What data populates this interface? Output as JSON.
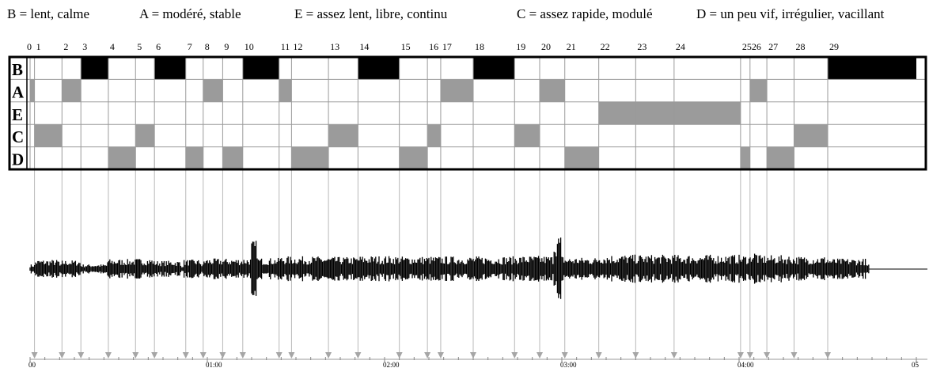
{
  "legend": [
    "B = lent, calme",
    "A = modéré, stable",
    "E = assez lent, libre, continu",
    "C = assez rapide, modulé",
    "D = un peu vif, irrégulier, vacillant"
  ],
  "rows": [
    "B",
    "A",
    "E",
    "C",
    "D"
  ],
  "segment_labels": [
    "0",
    "1",
    "2",
    "3",
    "4",
    "5",
    "6",
    "7",
    "8",
    "9",
    "10",
    "11",
    "12",
    "13",
    "14",
    "15",
    "16",
    "17",
    "18",
    "19",
    "20",
    "21",
    "22",
    "23",
    "24",
    "25",
    "26",
    "27",
    "28",
    "29"
  ],
  "segments": [
    {
      "id": "0",
      "start": 0.0,
      "end": 1.5,
      "cat": "A"
    },
    {
      "id": "1",
      "start": 1.5,
      "end": 10.8,
      "cat": "C"
    },
    {
      "id": "2",
      "start": 10.8,
      "end": 17.2,
      "cat": "A"
    },
    {
      "id": "3",
      "start": 17.2,
      "end": 26.5,
      "cat": "B"
    },
    {
      "id": "4",
      "start": 26.5,
      "end": 35.7,
      "cat": "D"
    },
    {
      "id": "5",
      "start": 35.7,
      "end": 42.1,
      "cat": "C"
    },
    {
      "id": "6",
      "start": 42.1,
      "end": 52.7,
      "cat": "B"
    },
    {
      "id": "7",
      "start": 52.7,
      "end": 58.6,
      "cat": "D"
    },
    {
      "id": "8",
      "start": 58.6,
      "end": 65.2,
      "cat": "A"
    },
    {
      "id": "9",
      "start": 65.2,
      "end": 72.0,
      "cat": "D"
    },
    {
      "id": "10",
      "start": 72.0,
      "end": 84.3,
      "cat": "B"
    },
    {
      "id": "11",
      "start": 84.3,
      "end": 88.5,
      "cat": "A"
    },
    {
      "id": "12",
      "start": 88.5,
      "end": 101.0,
      "cat": "D"
    },
    {
      "id": "13",
      "start": 101.0,
      "end": 111.0,
      "cat": "C"
    },
    {
      "id": "14",
      "start": 111.0,
      "end": 125.0,
      "cat": "B"
    },
    {
      "id": "15",
      "start": 125.0,
      "end": 134.5,
      "cat": "D"
    },
    {
      "id": "16",
      "start": 134.5,
      "end": 139.0,
      "cat": "C"
    },
    {
      "id": "17",
      "start": 139.0,
      "end": 150.0,
      "cat": "A"
    },
    {
      "id": "18",
      "start": 150.0,
      "end": 164.0,
      "cat": "B"
    },
    {
      "id": "19",
      "start": 164.0,
      "end": 172.5,
      "cat": "C"
    },
    {
      "id": "20",
      "start": 172.5,
      "end": 181.0,
      "cat": "A"
    },
    {
      "id": "21",
      "start": 181.0,
      "end": 192.5,
      "cat": "D"
    },
    {
      "id": "22",
      "start": 192.5,
      "end": 240.5,
      "cat": "E"
    },
    {
      "id": "25",
      "start": 240.5,
      "end": 243.7,
      "cat": "D"
    },
    {
      "id": "26",
      "start": 243.7,
      "end": 249.4,
      "cat": "A"
    },
    {
      "id": "27",
      "start": 249.4,
      "end": 258.6,
      "cat": "D"
    },
    {
      "id": "28",
      "start": 258.6,
      "end": 270.0,
      "cat": "C"
    },
    {
      "id": "29",
      "start": 270.0,
      "end": 300.0,
      "cat": "B"
    }
  ],
  "boundaries_s": [
    0,
    1.5,
    10.8,
    17.2,
    26.5,
    35.7,
    42.1,
    52.7,
    58.6,
    65.2,
    72.0,
    84.3,
    88.5,
    101.0,
    111.0,
    125.0,
    134.5,
    139.0,
    150.0,
    164.0,
    172.5,
    181.0,
    192.5,
    205.0,
    218.0,
    240.5,
    243.7,
    249.4,
    258.6,
    270.0
  ],
  "time_axis": {
    "ticks": [
      "00",
      "01:00",
      "02:00",
      "03:00",
      "04:00",
      "05"
    ],
    "tick_seconds": [
      0,
      60,
      120,
      180,
      240,
      300
    ]
  },
  "colors": {
    "category_B": "#000000",
    "category_other": "#9b9b9b",
    "grid": "#9a9a9a",
    "marker_line": "#b8b8b8",
    "marker_arrow": "#a6a6a6",
    "waveform": "#000000"
  }
}
